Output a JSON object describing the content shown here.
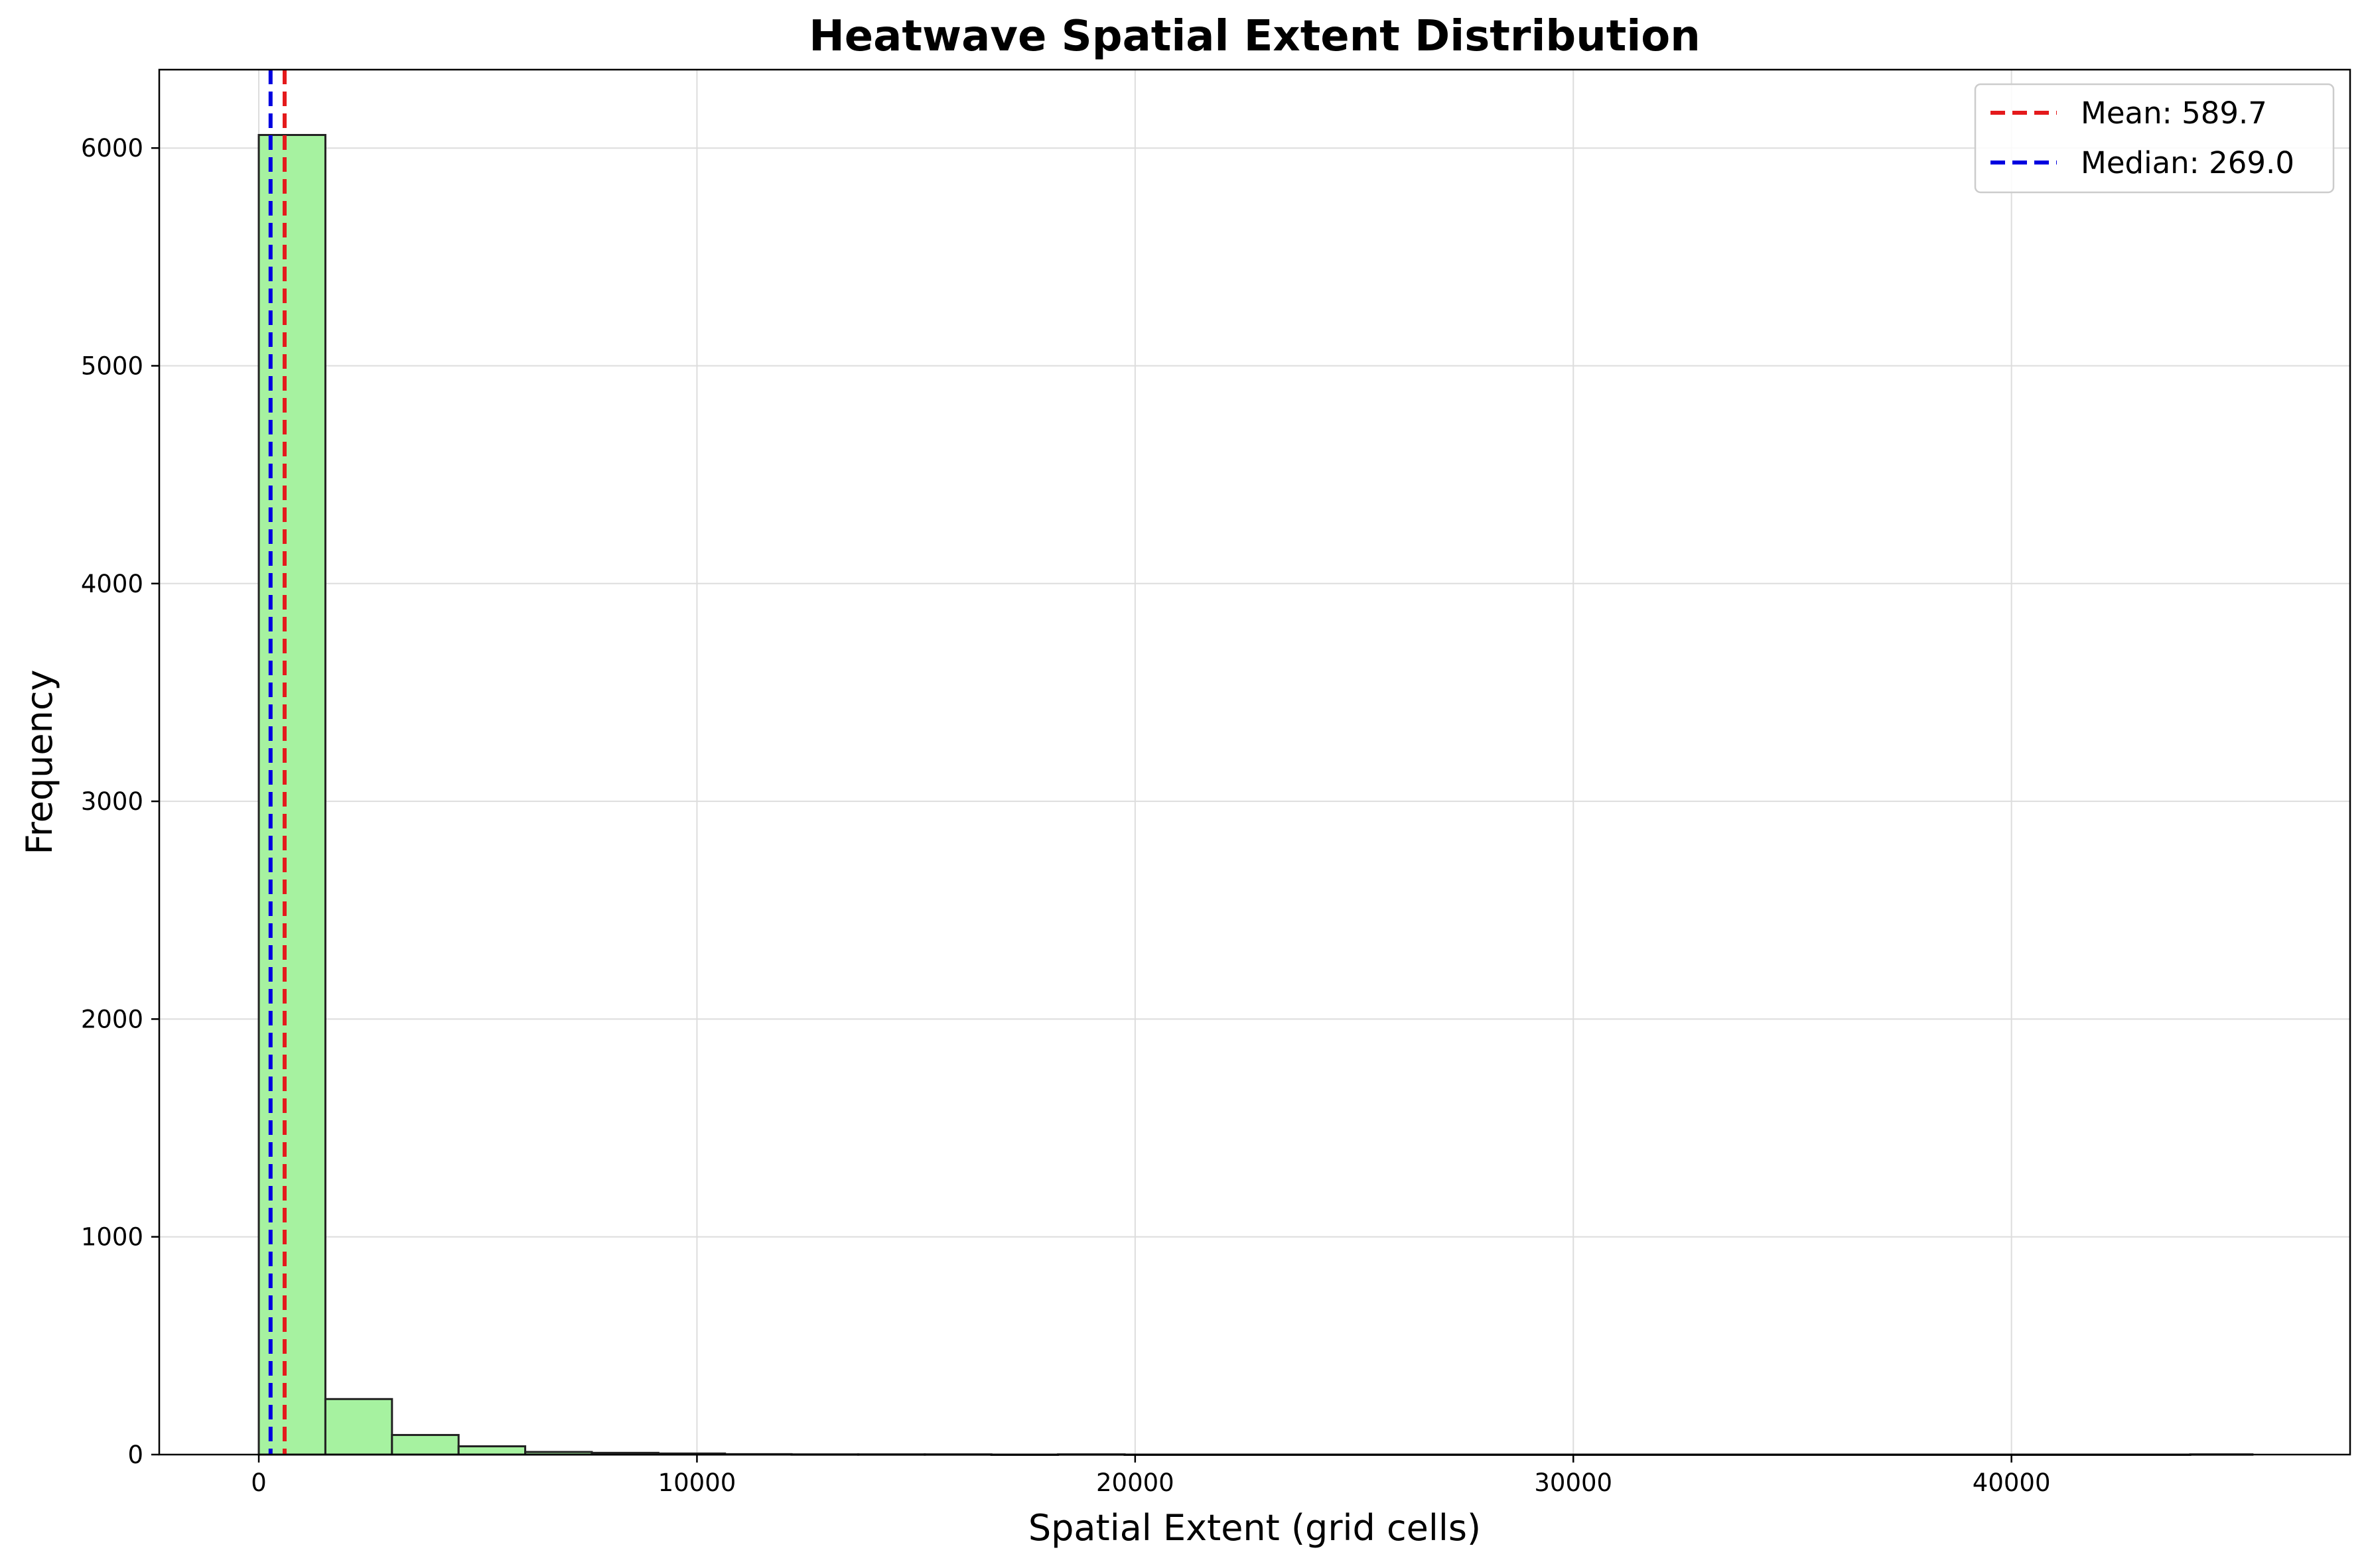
{
  "chart_data": {
    "type": "bar",
    "title": "Heatwave Spatial Extent Distribution",
    "xlabel": "Spatial Extent (grid cells)",
    "ylabel": "Frequency",
    "xlim": [
      -2272,
      47728
    ],
    "ylim": [
      0,
      6360
    ],
    "x_ticks": [
      0,
      10000,
      20000,
      30000,
      40000
    ],
    "y_ticks": [
      0,
      1000,
      2000,
      3000,
      4000,
      5000,
      6000
    ],
    "grid": true,
    "bar_color": "#a6f2a0",
    "bar_edge_color": "#222222",
    "bins": [
      {
        "x0": 0,
        "x1": 1520,
        "value": 6060
      },
      {
        "x0": 1520,
        "x1": 3040,
        "value": 255
      },
      {
        "x0": 3040,
        "x1": 4560,
        "value": 90
      },
      {
        "x0": 4560,
        "x1": 6080,
        "value": 38
      },
      {
        "x0": 6080,
        "x1": 7600,
        "value": 12
      },
      {
        "x0": 7600,
        "x1": 9120,
        "value": 8
      },
      {
        "x0": 9120,
        "x1": 10640,
        "value": 5
      },
      {
        "x0": 10640,
        "x1": 12160,
        "value": 2
      },
      {
        "x0": 12160,
        "x1": 13680,
        "value": 1
      },
      {
        "x0": 13680,
        "x1": 15200,
        "value": 1
      },
      {
        "x0": 15200,
        "x1": 16720,
        "value": 1
      },
      {
        "x0": 16720,
        "x1": 18240,
        "value": 0
      },
      {
        "x0": 18240,
        "x1": 19760,
        "value": 1
      },
      {
        "x0": 19760,
        "x1": 21280,
        "value": 0
      },
      {
        "x0": 21280,
        "x1": 22800,
        "value": 0
      },
      {
        "x0": 22800,
        "x1": 24320,
        "value": 0
      },
      {
        "x0": 24320,
        "x1": 25840,
        "value": 0
      },
      {
        "x0": 25840,
        "x1": 27360,
        "value": 0
      },
      {
        "x0": 27360,
        "x1": 28880,
        "value": 0
      },
      {
        "x0": 28880,
        "x1": 30400,
        "value": 0
      },
      {
        "x0": 30400,
        "x1": 31920,
        "value": 0
      },
      {
        "x0": 31920,
        "x1": 33440,
        "value": 0
      },
      {
        "x0": 33440,
        "x1": 34960,
        "value": 0
      },
      {
        "x0": 34960,
        "x1": 36480,
        "value": 0
      },
      {
        "x0": 36480,
        "x1": 38000,
        "value": 0
      },
      {
        "x0": 38000,
        "x1": 39520,
        "value": 0
      },
      {
        "x0": 39520,
        "x1": 41040,
        "value": 0
      },
      {
        "x0": 41040,
        "x1": 42560,
        "value": 0
      },
      {
        "x0": 42560,
        "x1": 44080,
        "value": 0
      },
      {
        "x0": 44080,
        "x1": 45500,
        "value": 1
      }
    ],
    "reference_lines": [
      {
        "name": "Mean",
        "label": "Mean: 589.7",
        "value": 589.7,
        "color": "#e41a1c",
        "style": "dashed"
      },
      {
        "name": "Median",
        "label": "Median: 269.0",
        "value": 269.0,
        "color": "#0000e0",
        "style": "dashed"
      }
    ],
    "legend": {
      "position": "top-right"
    }
  }
}
